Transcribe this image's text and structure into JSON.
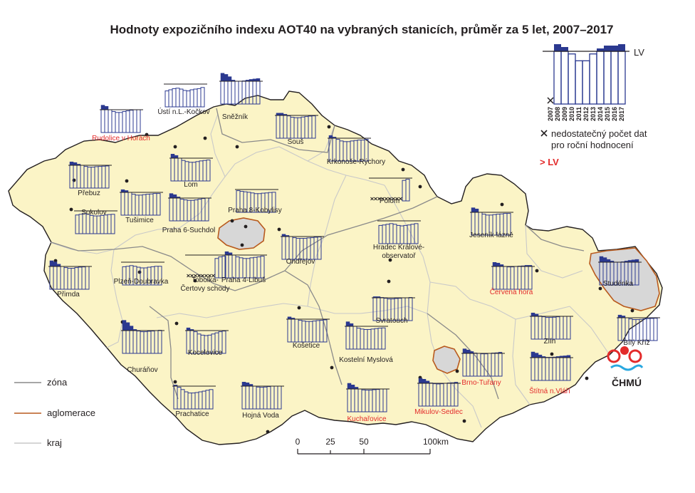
{
  "title": "Hodnoty expozičního indexu AOT40 na vybraných stanicích, průměr za 5 let, 2007–2017",
  "colors": {
    "map_fill": "#fbf4c6",
    "border": "#231f20",
    "zone": "#8a8a8a",
    "kraj": "#c9c9c9",
    "aglomerace_fill": "#d7d7d7",
    "aglomerace_line": "#b85a1e",
    "bar_over": "#2b3990",
    "bar_line": "#2b3990",
    "label_normal": "#231f20",
    "label_exceed": "#e32b2b"
  },
  "legend": {
    "lv_label": "LV",
    "years": [
      "2007",
      "2008",
      "2009",
      "2010",
      "2011",
      "2012",
      "2013",
      "2014",
      "2015",
      "2016",
      "2017"
    ],
    "sample_values": [
      0,
      1.25,
      1.15,
      0.95,
      0.82,
      0.82,
      0.95,
      1.1,
      1.2,
      1.2,
      1.25
    ],
    "sample_missing": [
      0
    ],
    "missing_label_1": "nedostatečný počet dat",
    "missing_label_2": "pro roční hodnocení",
    "exceed_label": "> LV",
    "lines": [
      {
        "key": "zone",
        "label": "zóna"
      },
      {
        "key": "aglomerace",
        "label": "aglomerace"
      },
      {
        "key": "kraj",
        "label": "kraj"
      }
    ]
  },
  "logo": {
    "text": "ČHMÚ"
  },
  "scale": {
    "ticks": [
      "0",
      "25",
      "50",
      "100"
    ],
    "unit": "km"
  },
  "stations": [
    {
      "id": "rudolice",
      "name": "Rudolice v Horách",
      "exceed": true,
      "values": [
        1.2,
        1.15,
        1.0,
        0.92,
        0.88,
        0.88,
        0.92,
        0.95,
        0.98,
        1.0,
        1.0
      ]
    },
    {
      "id": "usti",
      "name": "Ústí n.L.-Kočkov",
      "exceed": false,
      "values": [
        0.7,
        0.75,
        0.8,
        0.82,
        0.78,
        0.72,
        0.7,
        0.75,
        0.78,
        0.8,
        0.85
      ]
    },
    {
      "id": "sneznik",
      "name": "Sněžník",
      "exceed": true,
      "values": [
        1.35,
        1.3,
        1.2,
        1.05,
        1.0,
        1.0,
        1.02,
        1.05,
        1.08,
        1.1,
        1.12
      ]
    },
    {
      "id": "sous",
      "name": "Souš",
      "exceed": true,
      "values": [
        1.1,
        1.1,
        1.05,
        0.98,
        0.92,
        0.9,
        0.9,
        0.93,
        0.95,
        0.97,
        0.98
      ]
    },
    {
      "id": "prebuz",
      "name": "Přebuz",
      "exceed": true,
      "values": [
        1.15,
        1.12,
        1.05,
        1.0,
        0.95,
        0.92,
        0.92,
        0.94,
        0.95,
        0.96,
        0.97
      ]
    },
    {
      "id": "lom",
      "name": "Lom",
      "exceed": true,
      "values": [
        1.18,
        1.12,
        1.0,
        0.9,
        0.85,
        0.82,
        0.82,
        0.85,
        0.88,
        0.9,
        0.92
      ]
    },
    {
      "id": "krkonose",
      "name": "Krkonoše-Rýchory",
      "exceed": true,
      "values": [
        1.12,
        1.05,
        0.95,
        0.88,
        0.85,
        0.85,
        0.88,
        0.9,
        0.92,
        0.92,
        0.95
      ]
    },
    {
      "id": "sokolov",
      "name": "Sokolov",
      "exceed": false,
      "values": [
        0.82,
        0.85,
        0.88,
        0.85,
        0.8,
        0.78,
        0.78,
        0.8,
        0.82,
        0.84,
        0.85
      ]
    },
    {
      "id": "tusimice",
      "name": "Tušimice",
      "exceed": true,
      "values": [
        1.12,
        1.08,
        1.0,
        0.92,
        0.88,
        0.88,
        0.9,
        0.92,
        0.93,
        0.95,
        0.95
      ]
    },
    {
      "id": "praha6",
      "name": "Praha 6-Suchdol",
      "exceed": true,
      "values": [
        1.2,
        1.15,
        1.05,
        0.95,
        0.92,
        0.9,
        0.9,
        0.92,
        0.95,
        0.98,
        1.0
      ]
    },
    {
      "id": "praha8",
      "name": "Praha 8-Kobylisy",
      "exceed": false,
      "values": [
        0.95,
        0.92,
        0.9,
        0.88,
        0.85,
        0.82,
        0.82,
        0.84,
        0.85,
        0.87,
        0.88
      ]
    },
    {
      "id": "polom",
      "name": "Polom",
      "exceed": false,
      "values": [
        0,
        0,
        0,
        0,
        0,
        0,
        0,
        0,
        0,
        0.9,
        0.95
      ],
      "missing": [
        0,
        1,
        2,
        3,
        4,
        5,
        6,
        7,
        8
      ]
    },
    {
      "id": "hradec",
      "name": "Hradec Králové-observatoř",
      "exceed": false,
      "values": [
        0.8,
        0.82,
        0.85,
        0.88,
        0.85,
        0.8,
        0.78,
        0.8,
        0.82,
        0.85,
        0.88
      ]
    },
    {
      "id": "jesenik",
      "name": "Jeseník-lázně",
      "exceed": true,
      "values": [
        1.2,
        1.15,
        1.0,
        0.92,
        0.88,
        0.88,
        0.9,
        0.92,
        0.93,
        0.95,
        0.95
      ]
    },
    {
      "id": "primda",
      "name": "Přimda",
      "exceed": true,
      "values": [
        1.25,
        1.2,
        1.1,
        1.0,
        0.95,
        0.92,
        0.92,
        0.95,
        0.97,
        0.98,
        1.0
      ]
    },
    {
      "id": "plzen",
      "name": "Plzeň-Doubravka",
      "exceed": false,
      "values": [
        0.8,
        0.82,
        0.85,
        0.82,
        0.78,
        0.75,
        0.75,
        0.78,
        0.8,
        0.82,
        0.82
      ]
    },
    {
      "id": "tobolka",
      "name": "Tobolka-Čertovy schody",
      "exceed": false,
      "values": [
        0,
        0,
        0,
        0,
        0,
        0,
        0,
        0,
        0.85,
        0.92,
        0.95
      ],
      "missing": [
        0,
        1,
        2,
        3,
        4,
        5,
        6,
        7
      ]
    },
    {
      "id": "praha4",
      "name": "Praha 4-Libuš",
      "exceed": true,
      "values": [
        1.15,
        1.1,
        1.0,
        0.92,
        0.88,
        0.85,
        0.85,
        0.88,
        0.9,
        0.92,
        0.95
      ]
    },
    {
      "id": "ondrejov",
      "name": "Ondřejov",
      "exceed": true,
      "values": [
        1.1,
        1.05,
        1.0,
        0.95,
        0.92,
        0.92,
        0.92,
        0.94,
        0.95,
        0.97,
        0.98
      ]
    },
    {
      "id": "cervena",
      "name": "Červená hora",
      "exceed": true,
      "values": [
        1.18,
        1.15,
        1.08,
        1.0,
        0.98,
        0.98,
        1.0,
        1.02,
        1.03,
        1.05,
        1.05
      ]
    },
    {
      "id": "studenka",
      "name": "Studénka",
      "exceed": true,
      "values": [
        1.25,
        1.2,
        1.12,
        1.05,
        1.0,
        1.0,
        1.02,
        1.05,
        1.08,
        1.1,
        1.12
      ]
    },
    {
      "id": "svratouch",
      "name": "Svratouch",
      "exceed": true,
      "values": [
        1.05,
        1.05,
        1.02,
        0.98,
        0.95,
        0.95,
        0.97,
        0.98,
        1.0,
        1.0,
        1.02
      ]
    },
    {
      "id": "churanov",
      "name": "Churáňov",
      "exceed": true,
      "values": [
        1.45,
        1.35,
        1.2,
        1.05,
        0.98,
        0.95,
        0.95,
        0.97,
        0.98,
        1.0,
        1.02
      ]
    },
    {
      "id": "kocelovice",
      "name": "Kocelovice",
      "exceed": true,
      "values": [
        1.12,
        1.05,
        0.95,
        0.85,
        0.8,
        0.78,
        0.8,
        0.85,
        0.9,
        0.95,
        0.98
      ]
    },
    {
      "id": "kosetice",
      "name": "Košetice",
      "exceed": true,
      "values": [
        1.1,
        1.05,
        1.0,
        0.95,
        0.92,
        0.9,
        0.9,
        0.92,
        0.94,
        0.95,
        0.97
      ]
    },
    {
      "id": "kostelni",
      "name": "Kostelní Myslová",
      "exceed": true,
      "values": [
        1.2,
        1.12,
        1.0,
        0.92,
        0.88,
        0.86,
        0.86,
        0.88,
        0.9,
        0.92,
        0.93
      ]
    },
    {
      "id": "zlin",
      "name": "Zlín",
      "exceed": true,
      "values": [
        1.15,
        1.1,
        1.02,
        0.98,
        0.95,
        0.95,
        0.96,
        0.98,
        1.0,
        1.0,
        1.0
      ]
    },
    {
      "id": "bilykriz",
      "name": "Bílý Kříž",
      "exceed": true,
      "values": [
        1.12,
        1.08,
        1.0,
        0.95,
        0.92,
        0.92,
        0.93,
        0.95,
        0.96,
        0.97,
        0.98
      ]
    },
    {
      "id": "brno",
      "name": "Brno-Tuřany",
      "exceed": true,
      "values": [
        1.2,
        1.15,
        1.08,
        1.02,
        1.0,
        0.98,
        0.98,
        1.0,
        1.02,
        1.03,
        1.05
      ]
    },
    {
      "id": "stitna",
      "name": "Štítná n.Vláří",
      "exceed": true,
      "values": [
        1.25,
        1.2,
        1.12,
        1.05,
        1.02,
        1.02,
        1.03,
        1.05,
        1.07,
        1.08,
        1.1
      ]
    },
    {
      "id": "prachatice",
      "name": "Prachatice",
      "exceed": false,
      "values": [
        1.05,
        0.95,
        0.85,
        0.75,
        0.7,
        0.7,
        0.72,
        0.75,
        0.78,
        0.82,
        0.85
      ]
    },
    {
      "id": "hojna",
      "name": "Hojná Voda",
      "exceed": true,
      "values": [
        1.18,
        1.15,
        1.08,
        1.0,
        0.96,
        0.95,
        0.96,
        0.98,
        1.0,
        1.0,
        1.0
      ]
    },
    {
      "id": "kucharovice",
      "name": "Kuchařovice",
      "exceed": true,
      "values": [
        1.25,
        1.18,
        1.08,
        1.0,
        0.96,
        0.95,
        0.95,
        0.97,
        0.98,
        1.0,
        1.0
      ]
    },
    {
      "id": "mikulov",
      "name": "Mikulov-Sedlec",
      "exceed": true,
      "values": [
        1.22,
        1.18,
        1.1,
        1.02,
        0.98,
        0.97,
        0.98,
        1.0,
        1.02,
        1.03,
        1.05
      ]
    }
  ]
}
